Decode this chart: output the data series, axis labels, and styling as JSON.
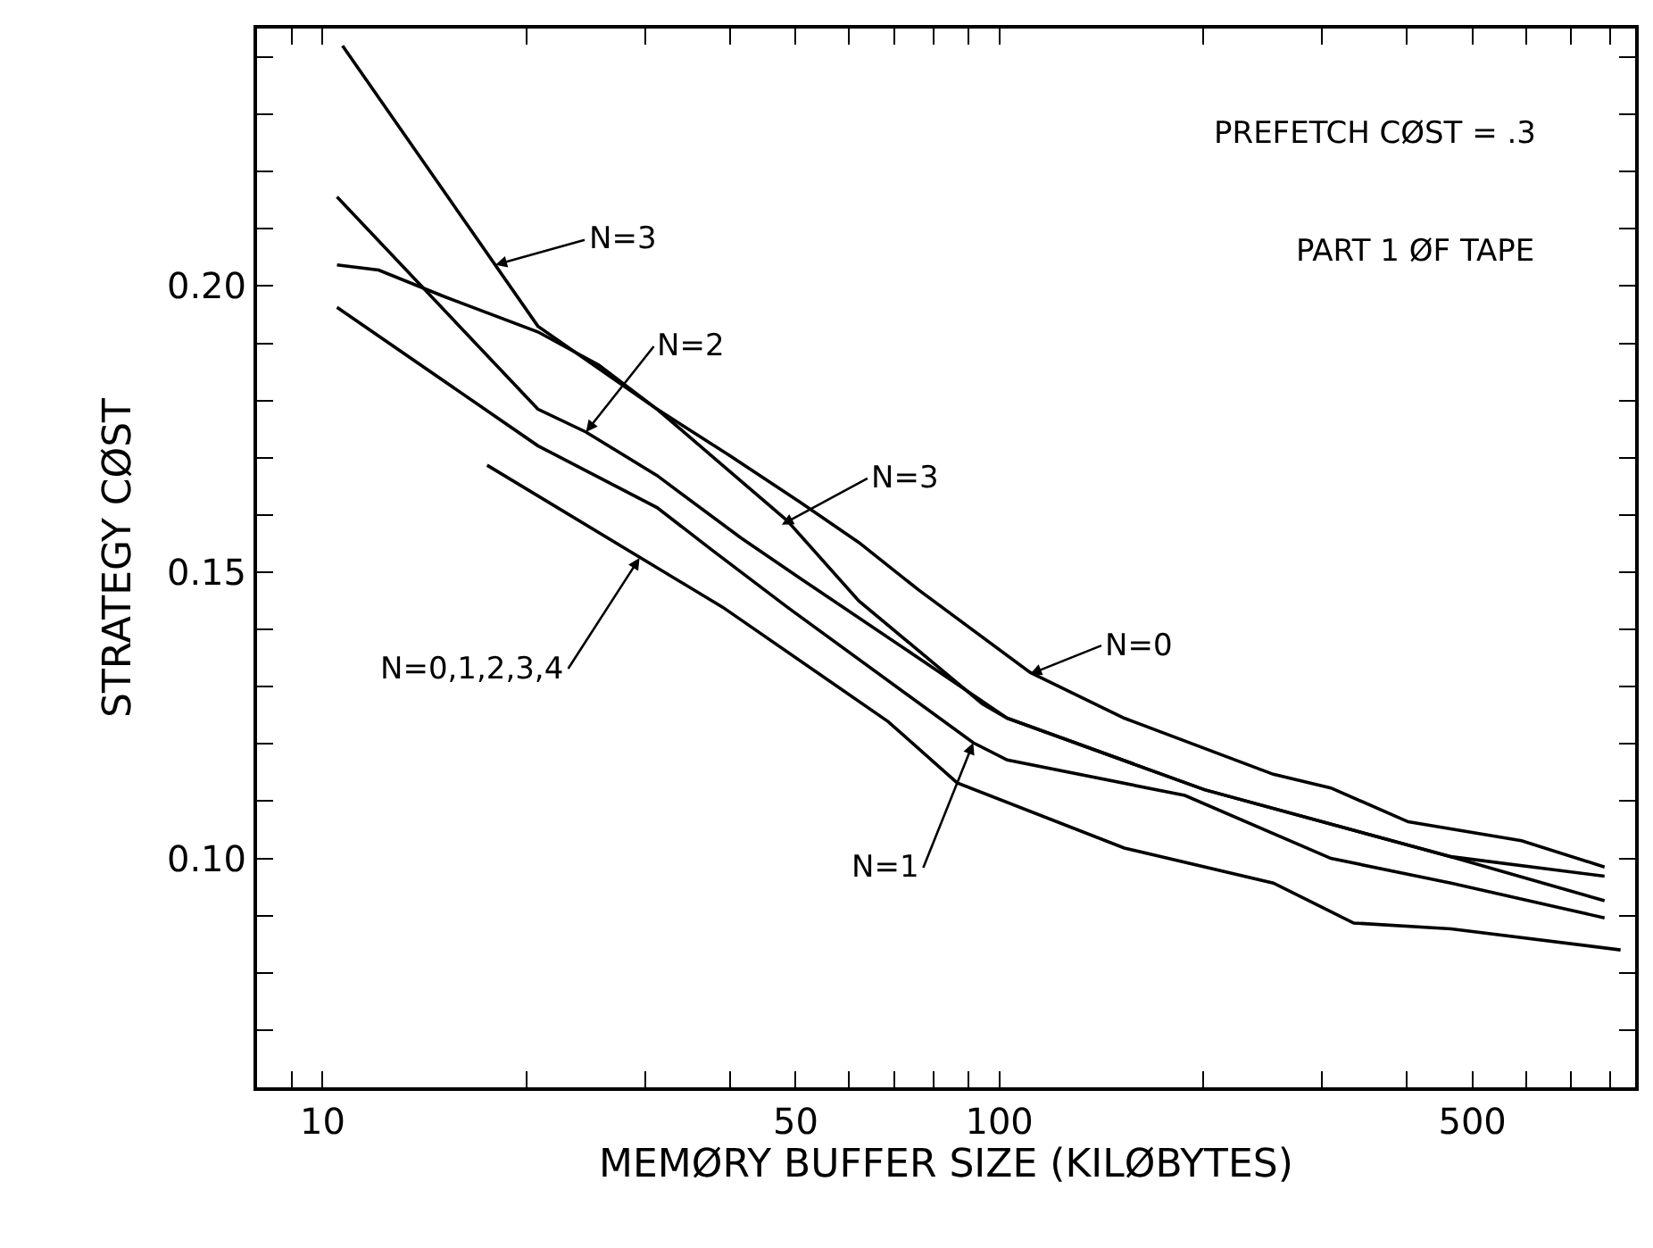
{
  "chart_data": {
    "type": "line",
    "xlabel": "MEMØRY BUFFER SIZE (KILØBYTES)",
    "ylabel": "STRATEGY CØST",
    "log": "x",
    "grid": false,
    "marker": "none",
    "line_style": "solid",
    "xlim": [
      8,
      870
    ],
    "ylim": [
      0.06,
      0.245
    ],
    "xticks": [
      {
        "value": 9,
        "label": null
      },
      10,
      {
        "value": 20,
        "label": null
      },
      {
        "value": 30,
        "label": null
      },
      {
        "value": 40,
        "label": null
      },
      50,
      {
        "value": 60,
        "label": null
      },
      {
        "value": 70,
        "label": null
      },
      {
        "value": 80,
        "label": null
      },
      {
        "value": 90,
        "label": null
      },
      100,
      {
        "value": 200,
        "label": null
      },
      {
        "value": 300,
        "label": null
      },
      {
        "value": 400,
        "label": null
      },
      500,
      {
        "value": 600,
        "label": null
      },
      {
        "value": 700,
        "label": null
      },
      {
        "value": 800,
        "label": null
      }
    ],
    "yticks": [
      {
        "value": 0.07,
        "label": null
      },
      {
        "value": 0.08,
        "label": null
      },
      {
        "value": 0.09,
        "label": null
      },
      {
        "value": 0.1,
        "label": "0.10"
      },
      {
        "value": 0.11,
        "label": null
      },
      {
        "value": 0.12,
        "label": null
      },
      {
        "value": 0.13,
        "label": null
      },
      {
        "value": 0.14,
        "label": null
      },
      0.15,
      {
        "value": 0.16,
        "label": null
      },
      {
        "value": 0.17,
        "label": null
      },
      {
        "value": 0.18,
        "label": null
      },
      {
        "value": 0.19,
        "label": null
      },
      {
        "value": 0.2,
        "label": "0.20"
      },
      {
        "value": 0.21,
        "label": null
      },
      {
        "value": 0.22,
        "label": null
      },
      {
        "value": 0.23,
        "label": null
      },
      {
        "value": 0.24,
        "label": null
      }
    ],
    "series": [
      {
        "color": "#000000",
        "x": [
          10.7,
          20.8,
          31.2,
          48.6,
          62,
          94.4,
          102.7,
          201,
          465,
          784
        ],
        "values": [
          0.242,
          0.193,
          0.1785,
          0.159,
          0.145,
          0.127,
          0.1245,
          0.112,
          0.1003,
          0.0926
        ]
      },
      {
        "color": "#000000",
        "x": [
          10.5,
          20.8,
          24.5,
          31.2,
          41.5,
          50.7,
          76,
          102.7,
          201,
          465,
          784
        ],
        "values": [
          0.2156,
          0.1785,
          0.1745,
          0.1669,
          0.156,
          0.149,
          0.135,
          0.1245,
          0.112,
          0.1003,
          0.0969
        ]
      },
      {
        "color": "#000000",
        "x": [
          10.5,
          12.1,
          15.1,
          20.8,
          25.6,
          31.2,
          39.7,
          50.7,
          62,
          76,
          111,
          153,
          254,
          309,
          402,
          591,
          784
        ],
        "values": [
          0.2037,
          0.2028,
          0.1982,
          0.192,
          0.1862,
          0.1785,
          0.1706,
          0.1623,
          0.1552,
          0.1469,
          0.1325,
          0.1245,
          0.1147,
          0.1123,
          0.1064,
          0.1031,
          0.0985
        ]
      },
      {
        "color": "#000000",
        "x": [
          10.5,
          20.8,
          31.2,
          37.5,
          48.6,
          91.5,
          102.7,
          188,
          309,
          465,
          784
        ],
        "values": [
          0.1963,
          0.1721,
          0.1613,
          0.154,
          0.1439,
          0.1202,
          0.1172,
          0.111,
          0.1,
          0.0957,
          0.0896
        ]
      },
      {
        "color": "#000000",
        "x": [
          17.5,
          29.9,
          39,
          68.5,
          86.6,
          153,
          254,
          334,
          465,
          828
        ],
        "values": [
          0.1687,
          0.1521,
          0.1439,
          0.1239,
          0.1132,
          0.1018,
          0.0957,
          0.0887,
          0.0877,
          0.084
        ]
      }
    ],
    "annotations": [
      {
        "text": "N=3",
        "x": 18,
        "y": 0.2037
      },
      {
        "text": "N=2",
        "x": 24.5,
        "y": 0.1745
      },
      {
        "text": "N=3",
        "x": 47.7,
        "y": 0.1583
      },
      {
        "text": "N=0",
        "x": 111,
        "y": 0.1322
      },
      {
        "text": "N=1",
        "x": 91.5,
        "y": 0.1202
      },
      {
        "text": "N=0,1,2,3,4",
        "x": 29.4,
        "y": 0.1525
      },
      "PREFETCH CØST = .3",
      "PART 1 ØF TAPE"
    ]
  }
}
